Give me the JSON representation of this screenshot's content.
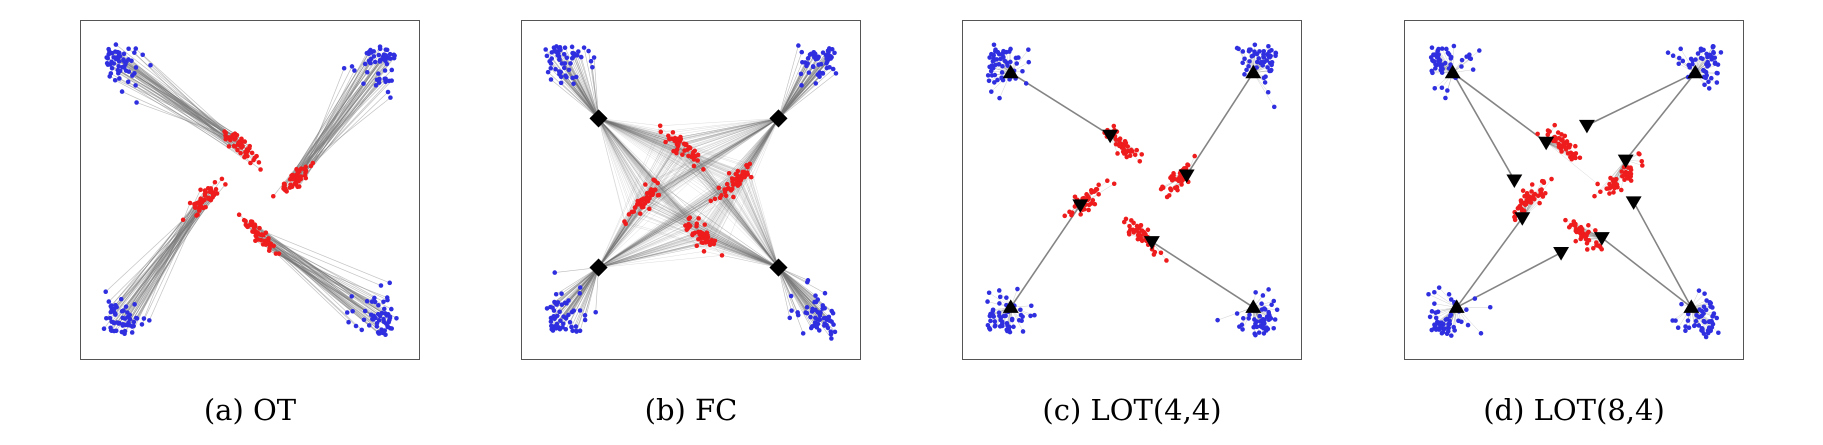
{
  "colors": {
    "source": "#2f2fe0",
    "target": "#ee1c1c",
    "line": "#777777",
    "anchor": "#000000",
    "frame": "#555555"
  },
  "panels": [
    {
      "caption": "(a) OT",
      "mode": "ot"
    },
    {
      "caption": "(b) FC",
      "mode": "fc"
    },
    {
      "caption": "(c) LOT(4,4)",
      "mode": "lot44"
    },
    {
      "caption": "(d) LOT(8,4)",
      "mode": "lot84"
    }
  ]
}
